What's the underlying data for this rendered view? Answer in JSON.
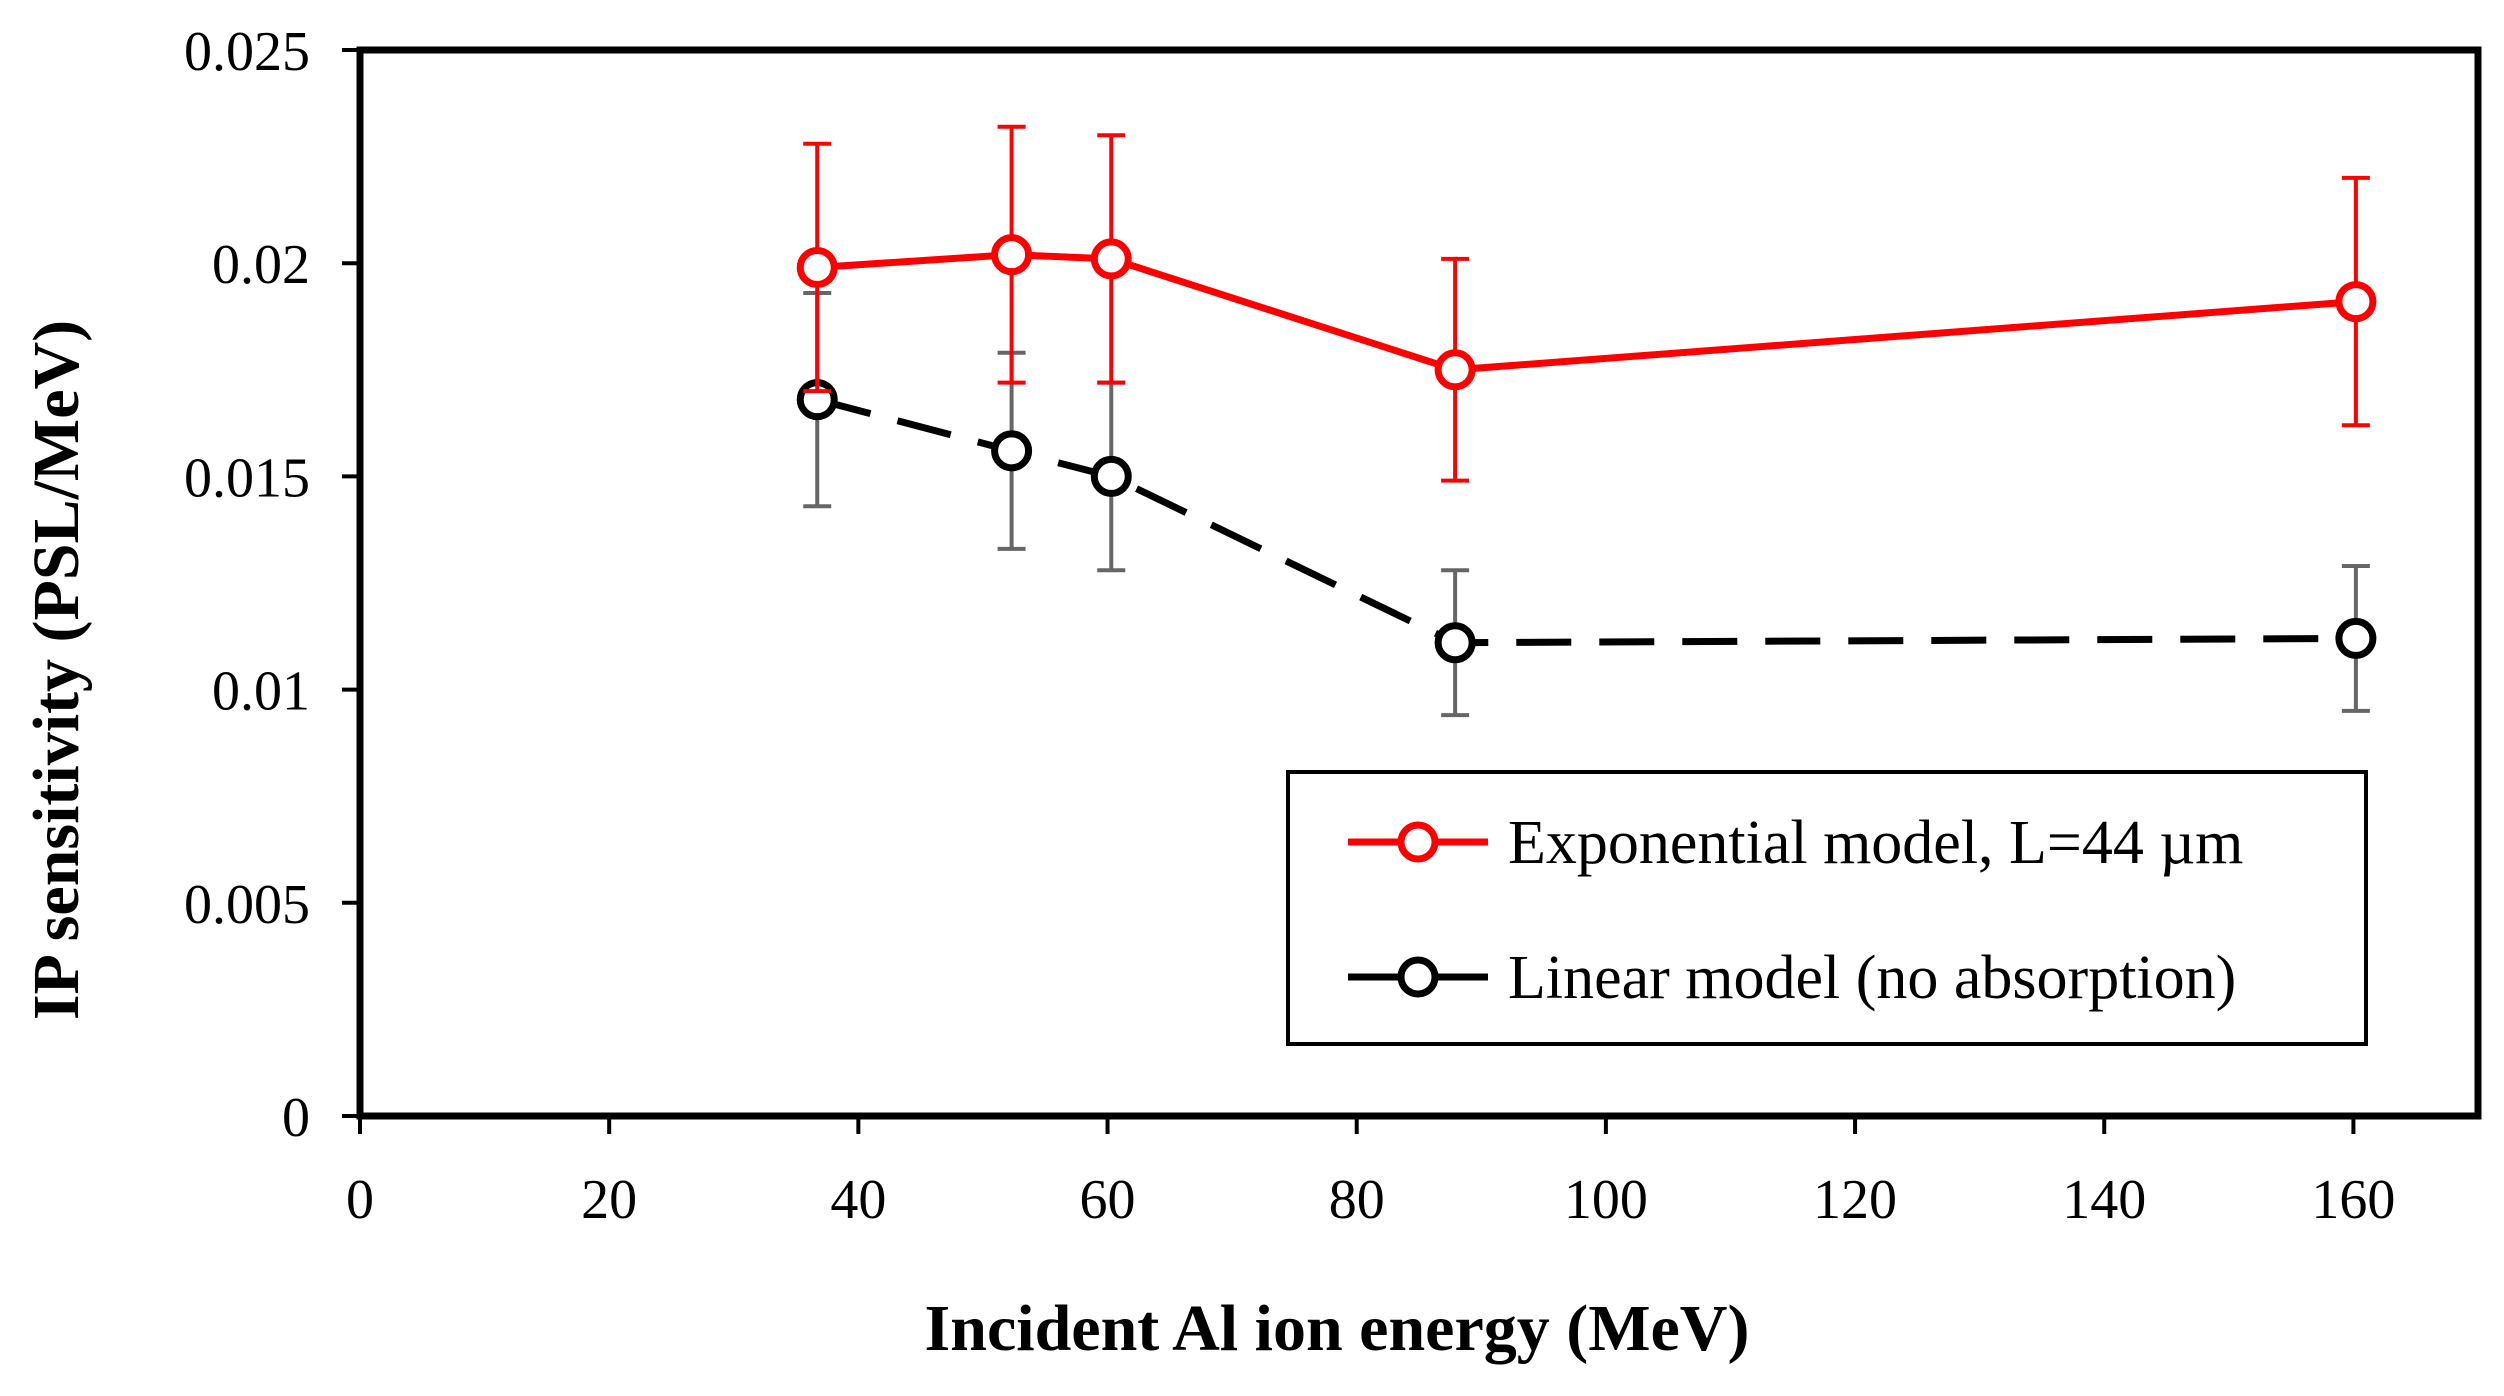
{
  "chart_data": {
    "type": "line",
    "title": "",
    "xlabel": "Incident Al ion energy (MeV)",
    "ylabel": "IP sensitivity (PSL/MeV)",
    "xlim": [
      0,
      170
    ],
    "ylim": [
      0,
      0.025
    ],
    "x_ticks": [
      "0",
      "20",
      "40",
      "60",
      "80",
      "100",
      "120",
      "140",
      "160"
    ],
    "y_ticks": [
      "0",
      "0.005",
      "0.01",
      "0.015",
      "0.02",
      "0.025"
    ],
    "grid": false,
    "legend_position": "bottom-right",
    "series": [
      {
        "name": "Exponential model, L=44 µm",
        "color": "#ff0000",
        "errorbar_color": "#ff0000",
        "line_style": "solid",
        "x": [
          36.7,
          52.3,
          60.3,
          87.9,
          160.2
        ],
        "y": [
          0.0199,
          0.0202,
          0.0201,
          0.0175,
          0.0191
        ],
        "err": [
          0.0029,
          0.003,
          0.0029,
          0.0026,
          0.0029
        ]
      },
      {
        "name": "Linear model (no absorption)",
        "color": "#000000",
        "errorbar_color": "#666666",
        "line_style": "dashed",
        "x": [
          36.7,
          52.3,
          60.3,
          87.9,
          160.2
        ],
        "y": [
          0.0168,
          0.0156,
          0.015,
          0.0111,
          0.0112
        ],
        "err": [
          0.0025,
          0.0023,
          0.0022,
          0.0017,
          0.0017
        ]
      }
    ]
  }
}
